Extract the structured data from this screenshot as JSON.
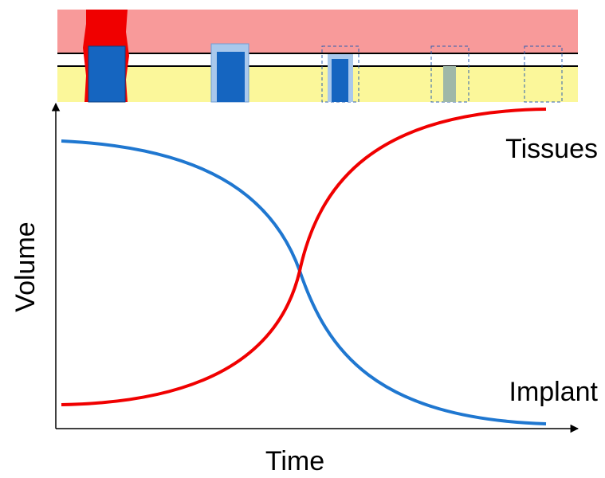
{
  "labels": {
    "tissues": "Tissues",
    "implant": "Implant",
    "y_axis": "Volume",
    "x_axis": "Time"
  }
}
